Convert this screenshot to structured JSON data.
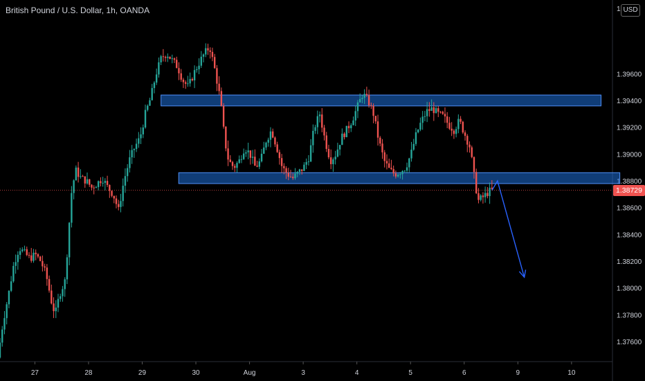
{
  "header": {
    "title": "British Pound / U.S. Dollar, 1h, OANDA",
    "currency_badge": "USD",
    "top_tick_partial": "1.("
  },
  "current_price": {
    "label": "1.38729",
    "color": "#f05350"
  },
  "chart_data": {
    "type": "candlestick",
    "instrument": "British Pound / U.S. Dollar",
    "timeframe": "1h",
    "source": "OANDA",
    "ylim": [
      1.3745,
      1.4015
    ],
    "y_ticks": [
      1.376,
      1.378,
      1.38,
      1.382,
      1.384,
      1.386,
      1.388,
      1.39,
      1.392,
      1.394,
      1.396
    ],
    "y_tick_labels": [
      "1.37600",
      "1.37800",
      "1.38000",
      "1.38200",
      "1.38400",
      "1.38600",
      "1.38800",
      "1.39000",
      "1.39200",
      "1.39400",
      "1.39600"
    ],
    "x_ticks": [
      {
        "label": "27",
        "day": 0
      },
      {
        "label": "28",
        "day": 1
      },
      {
        "label": "29",
        "day": 2
      },
      {
        "label": "30",
        "day": 3
      },
      {
        "label": "Aug",
        "day": 4
      },
      {
        "label": "3",
        "day": 5
      },
      {
        "label": "4",
        "day": 6
      },
      {
        "label": "5",
        "day": 7
      },
      {
        "label": "6",
        "day": 8
      },
      {
        "label": "9",
        "day": 9
      },
      {
        "label": "10",
        "day": 10
      }
    ],
    "xlim_days": [
      -0.65,
      10.75
    ],
    "last_price": 1.38729,
    "up_color": "#26a69a",
    "down_color": "#ef5350",
    "price_path": [
      [
        -0.65,
        1.3748
      ],
      [
        -0.55,
        1.3775
      ],
      [
        -0.45,
        1.3795
      ],
      [
        -0.35,
        1.3818
      ],
      [
        -0.25,
        1.383
      ],
      [
        -0.15,
        1.3826
      ],
      [
        -0.05,
        1.3822
      ],
      [
        0.05,
        1.3825
      ],
      [
        0.15,
        1.382
      ],
      [
        0.25,
        1.381
      ],
      [
        0.35,
        1.379
      ],
      [
        0.42,
        1.378
      ],
      [
        0.5,
        1.3795
      ],
      [
        0.6,
        1.3805
      ],
      [
        0.65,
        1.383
      ],
      [
        0.72,
        1.387
      ],
      [
        0.8,
        1.3888
      ],
      [
        0.9,
        1.3882
      ],
      [
        1.0,
        1.388
      ],
      [
        1.1,
        1.3875
      ],
      [
        1.2,
        1.3878
      ],
      [
        1.3,
        1.3882
      ],
      [
        1.4,
        1.3875
      ],
      [
        1.5,
        1.387
      ],
      [
        1.6,
        1.3858
      ],
      [
        1.7,
        1.388
      ],
      [
        1.8,
        1.3895
      ],
      [
        1.9,
        1.3905
      ],
      [
        2.0,
        1.3912
      ],
      [
        2.1,
        1.393
      ],
      [
        2.2,
        1.3942
      ],
      [
        2.3,
        1.396
      ],
      [
        2.4,
        1.3972
      ],
      [
        2.5,
        1.3975
      ],
      [
        2.6,
        1.397
      ],
      [
        2.7,
        1.3965
      ],
      [
        2.8,
        1.3955
      ],
      [
        2.9,
        1.395
      ],
      [
        3.0,
        1.396
      ],
      [
        3.1,
        1.3968
      ],
      [
        3.2,
        1.3975
      ],
      [
        3.3,
        1.398
      ],
      [
        3.4,
        1.3962
      ],
      [
        3.5,
        1.394
      ],
      [
        3.58,
        1.391
      ],
      [
        3.65,
        1.3895
      ],
      [
        3.75,
        1.389
      ],
      [
        3.85,
        1.3895
      ],
      [
        3.95,
        1.3905
      ],
      [
        4.05,
        1.39
      ],
      [
        4.15,
        1.389
      ],
      [
        4.25,
        1.3895
      ],
      [
        4.35,
        1.391
      ],
      [
        4.45,
        1.3918
      ],
      [
        4.55,
        1.3905
      ],
      [
        4.65,
        1.389
      ],
      [
        4.75,
        1.3885
      ],
      [
        4.85,
        1.3882
      ],
      [
        4.95,
        1.3886
      ],
      [
        5.05,
        1.389
      ],
      [
        5.15,
        1.3898
      ],
      [
        5.25,
        1.392
      ],
      [
        5.35,
        1.393
      ],
      [
        5.45,
        1.391
      ],
      [
        5.55,
        1.3895
      ],
      [
        5.65,
        1.39
      ],
      [
        5.75,
        1.3912
      ],
      [
        5.85,
        1.3918
      ],
      [
        5.95,
        1.3925
      ],
      [
        6.05,
        1.3935
      ],
      [
        6.15,
        1.3945
      ],
      [
        6.25,
        1.394
      ],
      [
        6.35,
        1.393
      ],
      [
        6.45,
        1.391
      ],
      [
        6.55,
        1.3895
      ],
      [
        6.65,
        1.3888
      ],
      [
        6.75,
        1.3885
      ],
      [
        6.85,
        1.3887
      ],
      [
        6.95,
        1.389
      ],
      [
        7.05,
        1.39
      ],
      [
        7.15,
        1.3915
      ],
      [
        7.25,
        1.3925
      ],
      [
        7.35,
        1.3932
      ],
      [
        7.45,
        1.3934
      ],
      [
        7.55,
        1.393
      ],
      [
        7.65,
        1.3928
      ],
      [
        7.75,
        1.3922
      ],
      [
        7.85,
        1.3918
      ],
      [
        7.95,
        1.3925
      ],
      [
        8.05,
        1.3915
      ],
      [
        8.15,
        1.3905
      ],
      [
        8.22,
        1.3885
      ],
      [
        8.3,
        1.3865
      ],
      [
        8.4,
        1.3868
      ],
      [
        8.5,
        1.3872
      ],
      [
        8.55,
        1.38729
      ]
    ],
    "zones": [
      {
        "day_start": 2.35,
        "day_end": 10.55,
        "price_low": 1.3938,
        "price_high": 1.3942
      },
      {
        "day_start": 2.68,
        "day_end": 10.9,
        "price_low": 1.388,
        "price_high": 1.3884
      }
    ],
    "projection": {
      "color": "#2962ff",
      "points": [
        [
          8.52,
          1.3873
        ],
        [
          8.62,
          1.388
        ],
        [
          9.12,
          1.3808
        ]
      ]
    }
  }
}
